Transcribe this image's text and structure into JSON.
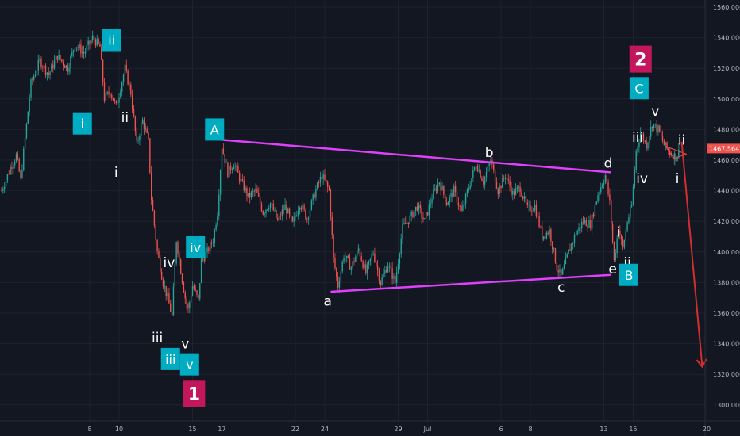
{
  "chart_data": {
    "type": "candlestick",
    "price_axis": {
      "min": 1290,
      "max": 1565,
      "ticks": [
        "1560.000",
        "1540.000",
        "1520.000",
        "1500.000",
        "1480.000",
        "1460.000",
        "1440.000",
        "1420.000",
        "1400.000",
        "1380.000",
        "1360.000",
        "1340.000",
        "1320.000",
        "1300.000"
      ]
    },
    "time_axis": {
      "ticks": [
        {
          "label": "8",
          "d": 6
        },
        {
          "label": "10",
          "d": 8
        },
        {
          "label": "15",
          "d": 13
        },
        {
          "label": "17",
          "d": 15
        },
        {
          "label": "22",
          "d": 20
        },
        {
          "label": "24",
          "d": 22
        },
        {
          "label": "29",
          "d": 27
        },
        {
          "label": "Jul",
          "d": 29
        },
        {
          "label": "6",
          "d": 34
        },
        {
          "label": "8",
          "d": 36
        },
        {
          "label": "13",
          "d": 41
        },
        {
          "label": "15",
          "d": 43
        },
        {
          "label": "20",
          "d": 48
        }
      ]
    },
    "current_price": {
      "label": "1467.564",
      "value": 1467.564
    },
    "trendlines": [
      {
        "name": "upper-line",
        "color": "#e040fb",
        "from": {
          "d": 14.1,
          "p": 1474
        },
        "to": {
          "d": 41.5,
          "p": 1452
        }
      },
      {
        "name": "lower-line",
        "color": "#e040fb",
        "from": {
          "d": 22.4,
          "p": 1374
        },
        "to": {
          "d": 41.5,
          "p": 1385
        }
      }
    ],
    "projection": {
      "color": "#d32f2f",
      "from": {
        "d": 46.3,
        "p": 1472
      },
      "to": {
        "d": 47.7,
        "p": 1325
      }
    },
    "triangle": [
      {
        "d": 45.2,
        "p": 1469
      },
      {
        "d": 46.6,
        "p": 1464
      },
      {
        "d": 45.8,
        "p": 1461
      }
    ],
    "wave_labels": [
      {
        "text": "ii",
        "d": 8.4,
        "p": 1485
      },
      {
        "text": "i",
        "d": 7.8,
        "p": 1449
      },
      {
        "text": "iv",
        "d": 11.4,
        "p": 1390
      },
      {
        "text": "iii",
        "d": 10.6,
        "p": 1341
      },
      {
        "text": "v",
        "d": 12.5,
        "p": 1337
      },
      {
        "text": "a",
        "d": 22.2,
        "p": 1365
      },
      {
        "text": "b",
        "d": 33.2,
        "p": 1462
      },
      {
        "text": "c",
        "d": 38.1,
        "p": 1374
      },
      {
        "text": "d",
        "d": 41.3,
        "p": 1455
      },
      {
        "text": "e",
        "d": 41.6,
        "p": 1386
      },
      {
        "text": "i",
        "d": 42.0,
        "p": 1410
      },
      {
        "text": "ii",
        "d": 42.6,
        "p": 1390
      },
      {
        "text": "iii",
        "d": 43.3,
        "p": 1472
      },
      {
        "text": "iv",
        "d": 43.6,
        "p": 1445
      },
      {
        "text": "v",
        "d": 44.5,
        "p": 1489
      },
      {
        "text": "i",
        "d": 46.0,
        "p": 1445
      },
      {
        "text": "ii",
        "d": 46.3,
        "p": 1470
      }
    ],
    "boxed_labels": [
      {
        "text": "ii",
        "d": 7.5,
        "p": 1538.5,
        "color": "#00acc1"
      },
      {
        "text": "i",
        "d": 5.5,
        "p": 1484,
        "color": "#00acc1"
      },
      {
        "text": "A",
        "d": 14.5,
        "p": 1480,
        "color": "#00acc1"
      },
      {
        "text": "iv",
        "d": 13.2,
        "p": 1403,
        "color": "#00acc1"
      },
      {
        "text": "iii",
        "d": 11.5,
        "p": 1330,
        "color": "#00acc1"
      },
      {
        "text": "v",
        "d": 12.8,
        "p": 1326.5,
        "color": "#00acc1"
      },
      {
        "text": "B",
        "d": 42.7,
        "p": 1385,
        "color": "#00acc1"
      },
      {
        "text": "C",
        "d": 43.4,
        "p": 1507,
        "color": "#00acc1"
      },
      {
        "text": "1",
        "d": 13.1,
        "p": 1307.5,
        "color": "#c2185b",
        "big": true
      },
      {
        "text": "2",
        "d": 43.5,
        "p": 1526,
        "color": "#c2185b",
        "big": true
      }
    ],
    "series_path": [
      {
        "d": 0.0,
        "p": 1440
      },
      {
        "d": 0.6,
        "p": 1455
      },
      {
        "d": 1.0,
        "p": 1463
      },
      {
        "d": 1.3,
        "p": 1447
      },
      {
        "d": 2.0,
        "p": 1510
      },
      {
        "d": 2.6,
        "p": 1525
      },
      {
        "d": 3.2,
        "p": 1516
      },
      {
        "d": 3.8,
        "p": 1528
      },
      {
        "d": 4.5,
        "p": 1520
      },
      {
        "d": 5.0,
        "p": 1536
      },
      {
        "d": 5.6,
        "p": 1530
      },
      {
        "d": 6.2,
        "p": 1540
      },
      {
        "d": 6.7,
        "p": 1534
      },
      {
        "d": 7.0,
        "p": 1500
      },
      {
        "d": 7.4,
        "p": 1505
      },
      {
        "d": 7.8,
        "p": 1495
      },
      {
        "d": 8.4,
        "p": 1520
      },
      {
        "d": 8.8,
        "p": 1504
      },
      {
        "d": 9.2,
        "p": 1470
      },
      {
        "d": 9.6,
        "p": 1486
      },
      {
        "d": 10.0,
        "p": 1472
      },
      {
        "d": 10.2,
        "p": 1435
      },
      {
        "d": 10.6,
        "p": 1400
      },
      {
        "d": 11.0,
        "p": 1380
      },
      {
        "d": 11.3,
        "p": 1370
      },
      {
        "d": 11.6,
        "p": 1358
      },
      {
        "d": 11.9,
        "p": 1408
      },
      {
        "d": 12.2,
        "p": 1388
      },
      {
        "d": 12.5,
        "p": 1370
      },
      {
        "d": 12.7,
        "p": 1362
      },
      {
        "d": 13.0,
        "p": 1378
      },
      {
        "d": 13.4,
        "p": 1368
      },
      {
        "d": 13.6,
        "p": 1394
      },
      {
        "d": 14.0,
        "p": 1400
      },
      {
        "d": 14.4,
        "p": 1408
      },
      {
        "d": 14.7,
        "p": 1426
      },
      {
        "d": 15.0,
        "p": 1469
      },
      {
        "d": 15.4,
        "p": 1452
      },
      {
        "d": 15.8,
        "p": 1458
      },
      {
        "d": 16.3,
        "p": 1446
      },
      {
        "d": 16.8,
        "p": 1436
      },
      {
        "d": 17.3,
        "p": 1440
      },
      {
        "d": 17.8,
        "p": 1426
      },
      {
        "d": 18.3,
        "p": 1432
      },
      {
        "d": 18.8,
        "p": 1420
      },
      {
        "d": 19.3,
        "p": 1430
      },
      {
        "d": 19.8,
        "p": 1418
      },
      {
        "d": 20.3,
        "p": 1432
      },
      {
        "d": 20.8,
        "p": 1422
      },
      {
        "d": 21.3,
        "p": 1438
      },
      {
        "d": 21.8,
        "p": 1450
      },
      {
        "d": 22.3,
        "p": 1440
      },
      {
        "d": 22.6,
        "p": 1395
      },
      {
        "d": 22.9,
        "p": 1378
      },
      {
        "d": 23.3,
        "p": 1398
      },
      {
        "d": 23.8,
        "p": 1390
      },
      {
        "d": 24.3,
        "p": 1402
      },
      {
        "d": 24.8,
        "p": 1386
      },
      {
        "d": 25.3,
        "p": 1400
      },
      {
        "d": 25.8,
        "p": 1380
      },
      {
        "d": 26.3,
        "p": 1392
      },
      {
        "d": 26.8,
        "p": 1380
      },
      {
        "d": 27.3,
        "p": 1416
      },
      {
        "d": 27.8,
        "p": 1422
      },
      {
        "d": 28.3,
        "p": 1430
      },
      {
        "d": 28.8,
        "p": 1420
      },
      {
        "d": 29.3,
        "p": 1436
      },
      {
        "d": 29.8,
        "p": 1446
      },
      {
        "d": 30.3,
        "p": 1432
      },
      {
        "d": 30.8,
        "p": 1440
      },
      {
        "d": 31.3,
        "p": 1426
      },
      {
        "d": 31.8,
        "p": 1442
      },
      {
        "d": 32.3,
        "p": 1458
      },
      {
        "d": 32.8,
        "p": 1446
      },
      {
        "d": 33.3,
        "p": 1460
      },
      {
        "d": 33.8,
        "p": 1440
      },
      {
        "d": 34.3,
        "p": 1450
      },
      {
        "d": 34.8,
        "p": 1438
      },
      {
        "d": 35.3,
        "p": 1442
      },
      {
        "d": 35.8,
        "p": 1428
      },
      {
        "d": 36.3,
        "p": 1430
      },
      {
        "d": 36.8,
        "p": 1410
      },
      {
        "d": 37.3,
        "p": 1414
      },
      {
        "d": 37.8,
        "p": 1390
      },
      {
        "d": 38.1,
        "p": 1384
      },
      {
        "d": 38.6,
        "p": 1400
      },
      {
        "d": 39.1,
        "p": 1412
      },
      {
        "d": 39.6,
        "p": 1420
      },
      {
        "d": 40.1,
        "p": 1418
      },
      {
        "d": 40.6,
        "p": 1438
      },
      {
        "d": 41.1,
        "p": 1450
      },
      {
        "d": 41.4,
        "p": 1432
      },
      {
        "d": 41.7,
        "p": 1394
      },
      {
        "d": 42.0,
        "p": 1416
      },
      {
        "d": 42.3,
        "p": 1402
      },
      {
        "d": 42.6,
        "p": 1420
      },
      {
        "d": 42.9,
        "p": 1430
      },
      {
        "d": 43.2,
        "p": 1466
      },
      {
        "d": 43.5,
        "p": 1478
      },
      {
        "d": 43.9,
        "p": 1470
      },
      {
        "d": 44.3,
        "p": 1484
      },
      {
        "d": 44.7,
        "p": 1480
      },
      {
        "d": 45.1,
        "p": 1470
      },
      {
        "d": 45.5,
        "p": 1465
      },
      {
        "d": 45.9,
        "p": 1462
      },
      {
        "d": 46.2,
        "p": 1467
      }
    ]
  }
}
